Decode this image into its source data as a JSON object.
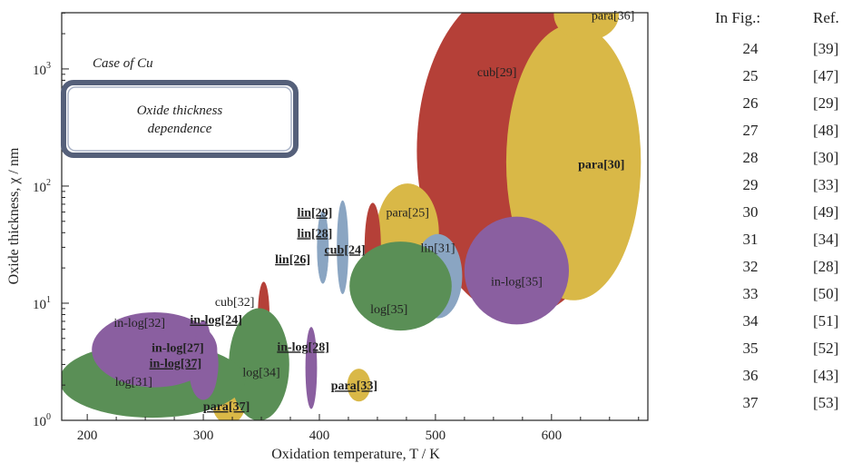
{
  "chart_data": {
    "type": "scatter",
    "title": "",
    "xlabel": "Oxidation temperature, T / K",
    "ylabel": "Oxide thickness, χ / nm",
    "xlim": [
      178,
      683
    ],
    "ylim_log10": [
      0,
      3.48
    ],
    "x_ticks": [
      200,
      300,
      400,
      500,
      600
    ],
    "y_ticks": [
      {
        "value": 1,
        "label": "10",
        "exp": "0"
      },
      {
        "value": 10,
        "label": "10",
        "exp": "1"
      },
      {
        "value": 100,
        "label": "10",
        "exp": "2"
      },
      {
        "value": 1000,
        "label": "10",
        "exp": "3"
      }
    ],
    "case_label": "Case of Cu",
    "box_label": [
      "Oxide thickness",
      "dependence"
    ],
    "colors": {
      "para": "#d9b847",
      "cub": "#b54038",
      "lin": "#8aa5c2",
      "log": "#5a8f56",
      "in-log": "#8a5fa0"
    },
    "regions": [
      {
        "label": "cub[29]",
        "kind": "cub",
        "x": 572,
        "y": 200,
        "rx": 88,
        "ry": 1.42
      },
      {
        "label": "para[30]",
        "kind": "para",
        "x": 619,
        "y": 160,
        "rx": 58,
        "ry": 1.18
      },
      {
        "label": "para[36]",
        "kind": "para",
        "x": 630,
        "y": 2900,
        "rx": 28,
        "ry": 0.22
      },
      {
        "label": "para[25]",
        "kind": "para",
        "x": 476,
        "y": 40,
        "rx": 27,
        "ry": 0.42
      },
      {
        "label": "para[33]",
        "kind": "para",
        "x": 434,
        "y": 2.0,
        "rx": 10,
        "ry": 0.14
      },
      {
        "label": "para[37]",
        "kind": "para",
        "x": 322,
        "y": 1.35,
        "rx": 14,
        "ry": 0.16
      },
      {
        "label": "cub[24]",
        "kind": "cub",
        "x": 446,
        "y": 30,
        "rx": 7,
        "ry": 0.38
      },
      {
        "label": "cub[32]",
        "kind": "cub",
        "x": 352,
        "y": 8.0,
        "rx": 5,
        "ry": 0.28
      },
      {
        "label": "lin[29]",
        "kind": "lin",
        "x": 420,
        "y": 30,
        "rx": 5,
        "ry": 0.4
      },
      {
        "label": "lin[28]",
        "kind": "lin",
        "x": 403,
        "y": 30,
        "rx": 5,
        "ry": 0.31
      },
      {
        "label": "lin[26]",
        "kind": "lin",
        "x": 403,
        "y": 30,
        "rx": 5,
        "ry": 0.31
      },
      {
        "label": "lin[31]",
        "kind": "lin",
        "x": 502,
        "y": 17,
        "rx": 21,
        "ry": 0.36
      },
      {
        "label": "log[35]",
        "kind": "log",
        "x": 470,
        "y": 14,
        "rx": 44,
        "ry": 0.38
      },
      {
        "label": "log[34]",
        "kind": "log",
        "x": 348,
        "y": 3.0,
        "rx": 26,
        "ry": 0.48
      },
      {
        "label": "log[31]",
        "kind": "log",
        "x": 256,
        "y": 2.2,
        "rx": 80,
        "ry": 0.32
      },
      {
        "label": "in-log[35]",
        "kind": "in-log",
        "x": 570,
        "y": 19,
        "rx": 45,
        "ry": 0.46
      },
      {
        "label": "in-log[32]",
        "kind": "in-log",
        "x": 258,
        "y": 4.0,
        "rx": 54,
        "ry": 0.32
      },
      {
        "label": "in-log[28]",
        "kind": "in-log",
        "x": 393,
        "y": 2.8,
        "rx": 5,
        "ry": 0.35
      },
      {
        "label": "in-log[27]",
        "kind": "in-log",
        "x": 300,
        "y": 3.0,
        "rx": 13,
        "ry": 0.28
      },
      {
        "label": "in-log[24]",
        "kind": "in-log",
        "x": 300,
        "y": 4.0,
        "rx": 7,
        "ry": 0.25
      },
      {
        "label": "in-log[37]",
        "kind": "in-log",
        "x": 300,
        "y": 2.6,
        "rx": 12,
        "ry": 0.24
      }
    ],
    "labels": [
      {
        "text": "cub[29]",
        "x": 553,
        "y": 950,
        "bold": false
      },
      {
        "text": "para[30]",
        "x": 643,
        "y": 155,
        "bold": true
      },
      {
        "text": "para[36]",
        "x": 653,
        "y": 2900,
        "bold": false
      },
      {
        "text": "para[25]",
        "x": 476,
        "y": 60,
        "bold": false
      },
      {
        "text": "para[33]",
        "x": 430,
        "y": 2.0,
        "bold": true,
        "underline": true
      },
      {
        "text": "para[37]",
        "x": 320,
        "y": 1.33,
        "bold": true,
        "underline": true
      },
      {
        "text": "cub[24]",
        "x": 422,
        "y": 29,
        "bold": true,
        "underline": true
      },
      {
        "text": "cub[32]",
        "x": 327,
        "y": 10.4,
        "bold": false
      },
      {
        "text": "lin[29]",
        "x": 396,
        "y": 60,
        "bold": true,
        "underline": true
      },
      {
        "text": "lin[28]",
        "x": 396,
        "y": 40,
        "bold": true,
        "underline": true
      },
      {
        "text": "lin[26]",
        "x": 377,
        "y": 24,
        "bold": true,
        "underline": true
      },
      {
        "text": "lin[31]",
        "x": 502,
        "y": 30,
        "bold": false
      },
      {
        "text": "log[35]",
        "x": 460,
        "y": 9.0,
        "bold": false
      },
      {
        "text": "log[34]",
        "x": 350,
        "y": 2.6,
        "bold": false
      },
      {
        "text": "log[31]",
        "x": 240,
        "y": 2.15,
        "bold": false
      },
      {
        "text": "in-log[35]",
        "x": 570,
        "y": 15.5,
        "bold": false
      },
      {
        "text": "in-log[32]",
        "x": 245,
        "y": 6.9,
        "bold": false
      },
      {
        "text": "in-log[28]",
        "x": 386,
        "y": 4.3,
        "bold": true,
        "underline": true
      },
      {
        "text": "in-log[27]",
        "x": 278,
        "y": 4.2,
        "bold": true
      },
      {
        "text": "in-log[24]",
        "x": 311,
        "y": 7.3,
        "bold": true,
        "underline": true
      },
      {
        "text": "in-log[37]",
        "x": 276,
        "y": 3.1,
        "bold": true,
        "underline": true
      }
    ]
  },
  "ref_table": {
    "header": [
      "In Fig.:",
      "Ref."
    ],
    "rows": [
      [
        "24",
        "[39]"
      ],
      [
        "25",
        "[47]"
      ],
      [
        "26",
        "[29]"
      ],
      [
        "27",
        "[48]"
      ],
      [
        "28",
        "[30]"
      ],
      [
        "29",
        "[33]"
      ],
      [
        "30",
        "[49]"
      ],
      [
        "31",
        "[34]"
      ],
      [
        "32",
        "[28]"
      ],
      [
        "33",
        "[50]"
      ],
      [
        "34",
        "[51]"
      ],
      [
        "35",
        "[52]"
      ],
      [
        "36",
        "[43]"
      ],
      [
        "37",
        "[53]"
      ]
    ]
  }
}
